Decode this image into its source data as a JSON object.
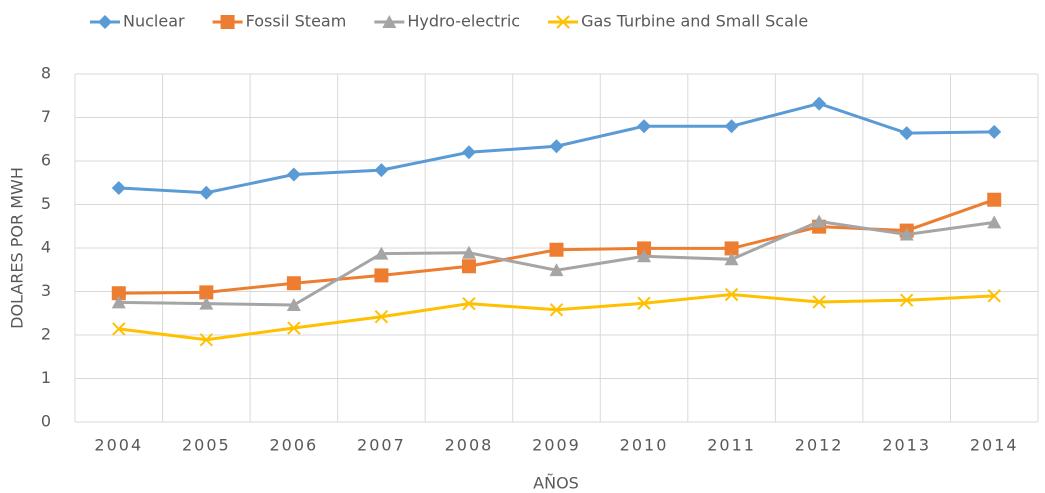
{
  "chart_data": {
    "type": "line",
    "categories": [
      "2004",
      "2005",
      "2006",
      "2007",
      "2008",
      "2009",
      "2010",
      "2011",
      "2012",
      "2013",
      "2014"
    ],
    "series": [
      {
        "name": "Nuclear",
        "color": "#5b9bd5",
        "marker": "diamond",
        "values": [
          5.38,
          5.27,
          5.69,
          5.79,
          6.2,
          6.34,
          6.8,
          6.8,
          7.32,
          6.64,
          6.67
        ]
      },
      {
        "name": "Fossil Steam",
        "color": "#ed7d31",
        "marker": "square",
        "values": [
          2.96,
          2.98,
          3.19,
          3.37,
          3.58,
          3.96,
          3.99,
          3.99,
          4.49,
          4.4,
          5.11
        ]
      },
      {
        "name": "Hydro-electric",
        "color": "#a5a5a5",
        "marker": "triangle",
        "values": [
          2.75,
          2.72,
          2.69,
          3.87,
          3.89,
          3.49,
          3.81,
          3.74,
          4.61,
          4.31,
          4.59
        ]
      },
      {
        "name": "Gas Turbine and Small Scale",
        "color": "#ffc000",
        "marker": "x",
        "values": [
          2.14,
          1.89,
          2.16,
          2.42,
          2.72,
          2.58,
          2.73,
          2.93,
          2.76,
          2.8,
          2.9
        ]
      }
    ],
    "xlabel": "AÑOS",
    "ylabel": "DOLARES POR MWH",
    "ylim": [
      0,
      8
    ],
    "yticks": [
      0,
      1,
      2,
      3,
      4,
      5,
      6,
      7,
      8
    ],
    "grid": true,
    "legend": "top"
  }
}
